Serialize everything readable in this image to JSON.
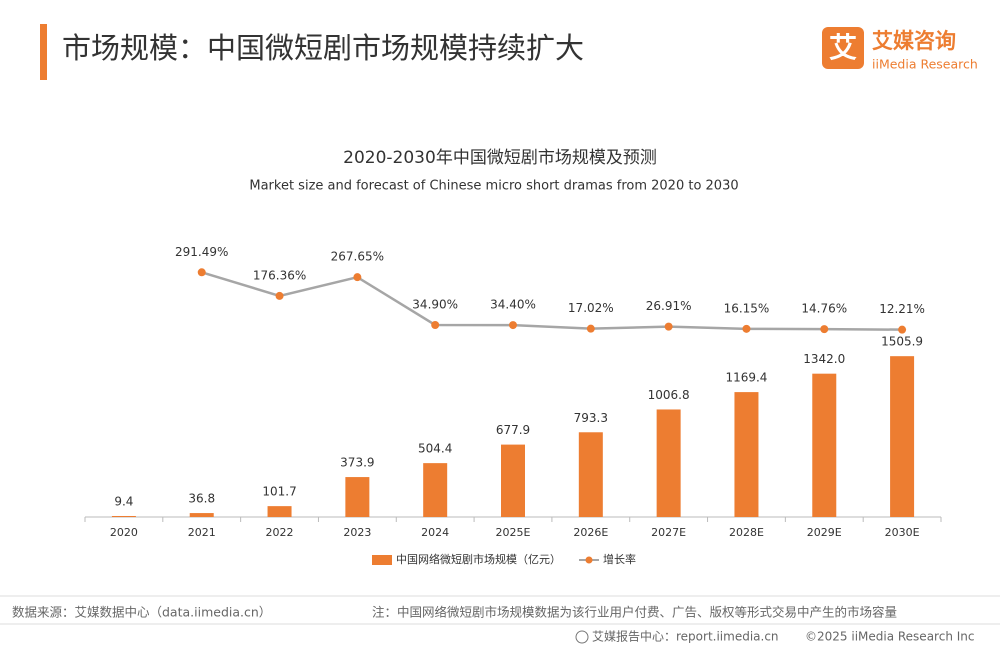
{
  "header": {
    "title": "市场规模：中国微短剧市场规模持续扩大",
    "logo_mark": "艾",
    "logo_name": "艾媒咨询",
    "logo_sub": "iiMedia Research"
  },
  "chart_data": {
    "type": "bar_line",
    "title": "2020-2030年中国微短剧市场规模及预测",
    "subtitle": "Market size and forecast of Chinese micro short dramas from 2020 to 2030",
    "categories": [
      "2020",
      "2021",
      "2022",
      "2023",
      "2024",
      "2025E",
      "2026E",
      "2027E",
      "2028E",
      "2029E",
      "2030E"
    ],
    "series": [
      {
        "name": "中国网络微短剧市场规模（亿元）",
        "type": "bar",
        "color": "#ed7d31",
        "values": [
          9.4,
          36.8,
          101.7,
          373.9,
          504.4,
          677.9,
          793.3,
          1006.8,
          1169.4,
          1342.0,
          1505.9
        ],
        "value_labels": [
          "9.4",
          "36.8",
          "101.7",
          "373.9",
          "504.4",
          "677.9",
          "793.3",
          "1006.8",
          "1169.4",
          "1342.0",
          "1505.9"
        ]
      },
      {
        "name": "增长率",
        "type": "line",
        "axis": "y2",
        "color": "#a6a6a6",
        "marker_color": "#ed7d31",
        "values": [
          null,
          291.49,
          176.36,
          267.65,
          34.9,
          34.4,
          17.02,
          26.91,
          16.15,
          14.76,
          12.21
        ],
        "value_labels": [
          null,
          "291.49%",
          "176.36%",
          "267.65%",
          "34.90%",
          "34.40%",
          "17.02%",
          "26.91%",
          "16.15%",
          "14.76%",
          "12.21%"
        ]
      }
    ],
    "ylim": [
      0,
      2500
    ],
    "y2lim": [
      -900,
      400
    ],
    "legend": "bottom"
  },
  "footer": {
    "source": "数据来源：艾媒数据中心（data.iimedia.cn）",
    "note": "注：中国网络微短剧市场规模数据为该行业用户付费、广告、版权等形式交易中产生的市场容量",
    "site": "艾媒报告中心：report.iimedia.cn",
    "copyright": "©2025  iiMedia Research Inc"
  }
}
